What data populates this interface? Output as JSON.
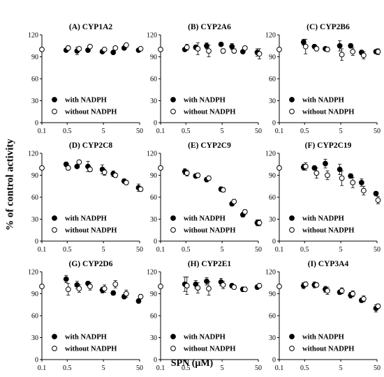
{
  "figure": {
    "ylabel": "% of control activity",
    "xlabel": "SPN (μM)"
  },
  "chart_data": [
    {
      "type": "scatter",
      "title": "(A) CYP1A2",
      "x_scale": "log",
      "xlim": [
        0.1,
        50
      ],
      "ylim": [
        0,
        120
      ],
      "x_ticks": [
        0.1,
        0.5,
        5,
        50
      ],
      "y_ticks": [
        0,
        30,
        60,
        90,
        120
      ],
      "legend": [
        "with NADPH",
        "without NADPH"
      ],
      "control": {
        "x": 0.1,
        "y": 100
      },
      "x": [
        0.5,
        1,
        2,
        5,
        10,
        20,
        50
      ],
      "series": [
        {
          "name": "with NADPH",
          "marker": "filled",
          "values": [
            99,
            98,
            99,
            97,
            96,
            102,
            99
          ],
          "err": [
            2,
            5,
            2,
            2,
            2,
            2,
            1
          ]
        },
        {
          "name": "without NADPH",
          "marker": "open",
          "values": [
            102,
            101,
            104,
            100,
            102,
            106,
            101
          ],
          "err": [
            3,
            2,
            2,
            2,
            2,
            2,
            2
          ]
        }
      ]
    },
    {
      "type": "scatter",
      "title": "(B) CYP2A6",
      "x_scale": "log",
      "xlim": [
        0.1,
        50
      ],
      "ylim": [
        0,
        120
      ],
      "x_ticks": [
        0.1,
        0.5,
        5,
        50
      ],
      "y_ticks": [
        0,
        30,
        60,
        90,
        120
      ],
      "legend": [
        "with NADPH",
        "without NADPH"
      ],
      "control": {
        "x": 0.1,
        "y": 100
      },
      "x": [
        0.5,
        1,
        2,
        5,
        10,
        20,
        50
      ],
      "series": [
        {
          "name": "with NADPH",
          "marker": "filled",
          "values": [
            100,
            103,
            105,
            107,
            104,
            97,
            96
          ],
          "err": [
            2,
            3,
            4,
            2,
            4,
            2,
            5
          ]
        },
        {
          "name": "without NADPH",
          "marker": "open",
          "values": [
            103,
            101,
            98,
            98,
            98,
            102,
            94
          ],
          "err": [
            4,
            8,
            8,
            3,
            3,
            2,
            7
          ]
        }
      ]
    },
    {
      "type": "scatter",
      "title": "(C) CYP2B6",
      "x_scale": "log",
      "xlim": [
        0.1,
        50
      ],
      "ylim": [
        0,
        120
      ],
      "x_ticks": [
        0.1,
        0.5,
        5,
        50
      ],
      "y_ticks": [
        0,
        30,
        60,
        90,
        120
      ],
      "legend": [
        "with NADPH",
        "without NADPH"
      ],
      "control": {
        "x": 0.1,
        "y": 100
      },
      "x": [
        0.5,
        1,
        2,
        5,
        10,
        20,
        50
      ],
      "series": [
        {
          "name": "with NADPH",
          "marker": "filled",
          "values": [
            110,
            104,
            101,
            105,
            105,
            96,
            97
          ],
          "err": [
            4,
            2,
            2,
            7,
            3,
            3,
            2
          ]
        },
        {
          "name": "without NADPH",
          "marker": "open",
          "values": [
            104,
            101,
            100,
            93,
            97,
            92,
            97
          ],
          "err": [
            10,
            3,
            3,
            8,
            5,
            5,
            4
          ]
        }
      ]
    },
    {
      "type": "scatter",
      "title": "(D) CYP2C8",
      "x_scale": "log",
      "xlim": [
        0.1,
        50
      ],
      "ylim": [
        0,
        120
      ],
      "x_ticks": [
        0.1,
        0.5,
        5,
        50
      ],
      "y_ticks": [
        0,
        30,
        60,
        90,
        120
      ],
      "legend": [
        "with NADPH",
        "without NADPH"
      ],
      "control": {
        "x": 0.1,
        "y": 100
      },
      "x": [
        0.5,
        1,
        2,
        5,
        10,
        20,
        50
      ],
      "series": [
        {
          "name": "with NADPH",
          "marker": "filled",
          "values": [
            105,
            102,
            102,
            98,
            92,
            82,
            73
          ],
          "err": [
            3,
            2,
            7,
            6,
            4,
            3,
            5
          ]
        },
        {
          "name": "without NADPH",
          "marker": "open",
          "values": [
            100,
            108,
            98,
            94,
            90,
            80,
            71
          ],
          "err": [
            3,
            2,
            3,
            4,
            3,
            3,
            3
          ]
        }
      ]
    },
    {
      "type": "scatter",
      "title": "(E) CYP2C9",
      "x_scale": "log",
      "xlim": [
        0.1,
        50
      ],
      "ylim": [
        0,
        120
      ],
      "x_ticks": [
        0.1,
        0.5,
        5,
        50
      ],
      "y_ticks": [
        0,
        30,
        60,
        90,
        120
      ],
      "legend": [
        "with NADPH",
        "without NADPH"
      ],
      "control": {
        "x": 0.1,
        "y": 100
      },
      "x": [
        0.5,
        1,
        2,
        5,
        10,
        20,
        50
      ],
      "series": [
        {
          "name": "with NADPH",
          "marker": "filled",
          "values": [
            95,
            89,
            84,
            71,
            51,
            36,
            25
          ],
          "err": [
            4,
            3,
            3,
            3,
            3,
            3,
            4
          ]
        },
        {
          "name": "without NADPH",
          "marker": "open",
          "values": [
            93,
            90,
            86,
            70,
            54,
            40,
            25
          ],
          "err": [
            4,
            3,
            3,
            3,
            3,
            3,
            4
          ]
        }
      ]
    },
    {
      "type": "scatter",
      "title": "(F) CYP2C19",
      "x_scale": "log",
      "xlim": [
        0.1,
        50
      ],
      "ylim": [
        0,
        120
      ],
      "x_ticks": [
        0.1,
        0.5,
        5,
        50
      ],
      "y_ticks": [
        0,
        30,
        60,
        90,
        120
      ],
      "legend": [
        "with NADPH",
        "without NADPH"
      ],
      "control": {
        "x": 0.1,
        "y": 100
      },
      "x": [
        0.5,
        1,
        2,
        5,
        10,
        20,
        50
      ],
      "series": [
        {
          "name": "with NADPH",
          "marker": "filled",
          "values": [
            101,
            100,
            106,
            98,
            89,
            80,
            65
          ],
          "err": [
            4,
            3,
            6,
            7,
            3,
            5,
            3
          ]
        },
        {
          "name": "without NADPH",
          "marker": "open",
          "values": [
            102,
            93,
            90,
            86,
            80,
            69,
            56
          ],
          "err": [
            5,
            7,
            6,
            10,
            7,
            6,
            5
          ]
        }
      ]
    },
    {
      "type": "scatter",
      "title": "(G) CYP2D6",
      "x_scale": "log",
      "xlim": [
        0.1,
        50
      ],
      "ylim": [
        0,
        120
      ],
      "x_ticks": [
        0.1,
        0.5,
        5,
        50
      ],
      "y_ticks": [
        0,
        30,
        60,
        90,
        120
      ],
      "legend": [
        "with NADPH",
        "without NADPH"
      ],
      "control": {
        "x": 0.1,
        "y": 100
      },
      "x": [
        0.5,
        1,
        2,
        5,
        10,
        20,
        50
      ],
      "series": [
        {
          "name": "with NADPH",
          "marker": "filled",
          "values": [
            110,
            102,
            104,
            95,
            91,
            86,
            80
          ],
          "err": [
            5,
            5,
            3,
            4,
            3,
            3,
            3
          ]
        },
        {
          "name": "without NADPH",
          "marker": "open",
          "values": [
            96,
            97,
            100,
            97,
            103,
            90,
            86
          ],
          "err": [
            8,
            5,
            5,
            5,
            5,
            5,
            3
          ]
        }
      ]
    },
    {
      "type": "scatter",
      "title": "(H) CYP2E1",
      "x_scale": "log",
      "xlim": [
        0.1,
        50
      ],
      "ylim": [
        0,
        120
      ],
      "x_ticks": [
        0.1,
        0.5,
        5,
        50
      ],
      "y_ticks": [
        0,
        30,
        60,
        90,
        120
      ],
      "legend": [
        "with NADPH",
        "without NADPH"
      ],
      "control": {
        "x": 0.1,
        "y": 100
      },
      "x": [
        0.5,
        1,
        2,
        5,
        10,
        20,
        50
      ],
      "series": [
        {
          "name": "with NADPH",
          "marker": "filled",
          "values": [
            103,
            103,
            107,
            106,
            101,
            96,
            99
          ],
          "err": [
            10,
            5,
            5,
            5,
            3,
            3,
            3
          ]
        },
        {
          "name": "without NADPH",
          "marker": "open",
          "values": [
            101,
            98,
            97,
            102,
            99,
            96,
            101
          ],
          "err": [
            12,
            7,
            9,
            5,
            3,
            3,
            3
          ]
        }
      ]
    },
    {
      "type": "scatter",
      "title": "(I) CYP3A4",
      "x_scale": "log",
      "xlim": [
        0.1,
        50
      ],
      "ylim": [
        0,
        120
      ],
      "x_ticks": [
        0.1,
        0.5,
        5,
        50
      ],
      "y_ticks": [
        0,
        30,
        60,
        90,
        120
      ],
      "legend": [
        "with NADPH",
        "without NADPH"
      ],
      "control": {
        "x": 0.1,
        "y": 100
      },
      "x": [
        0.5,
        1,
        2,
        5,
        10,
        20,
        50
      ],
      "series": [
        {
          "name": "with NADPH",
          "marker": "filled",
          "values": [
            101,
            102,
            96,
            92,
            88,
            81,
            70
          ],
          "err": [
            4,
            4,
            4,
            3,
            4,
            3,
            5
          ]
        },
        {
          "name": "without NADPH",
          "marker": "open",
          "values": [
            103,
            102,
            94,
            94,
            90,
            83,
            73
          ],
          "err": [
            3,
            3,
            5,
            4,
            4,
            4,
            3
          ]
        }
      ]
    }
  ]
}
